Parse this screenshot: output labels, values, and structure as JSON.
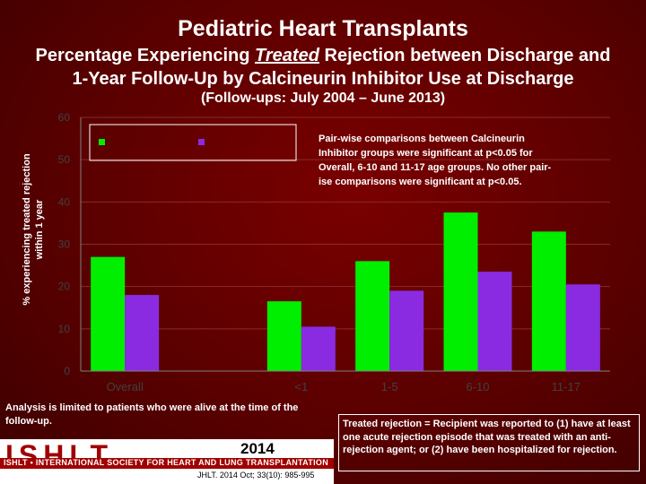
{
  "header": {
    "title": "Pediatric Heart Transplants",
    "subtitle_line1_prefix": "Percentage Experiencing",
    "subtitle_treated": "Treated",
    "subtitle_line1_suffix": "Rejection between Discharge and",
    "subtitle_line2": "1-Year Follow-Up by Calcineurin Inhibitor Use at Discharge",
    "followups": "(Follow-ups: July 2004 – June 2013)"
  },
  "colors": {
    "series1": "#00ee00",
    "series2": "#8a2be2",
    "axis_text": "#404040"
  },
  "chart_data": {
    "type": "bar",
    "title": "",
    "xlabel": "",
    "ylabel": "% experiencing treated rejection within 1 year",
    "ylim": [
      0,
      60
    ],
    "yticks": [
      0,
      10,
      20,
      30,
      40,
      50,
      60
    ],
    "categories": [
      "Overall",
      "",
      "<1",
      "1-5",
      "6-10",
      "11-17"
    ],
    "series": [
      {
        "name": "",
        "values": [
          27,
          null,
          16.5,
          26,
          37.5,
          33
        ]
      },
      {
        "name": "",
        "values": [
          18,
          null,
          10.5,
          19,
          23.5,
          20.5
        ]
      }
    ],
    "legend_position": "top-left",
    "annotation": "Pair-wise comparisons between Calcineurin Inhibitor groups were significant at p<0.05 for Overall, 6-10 and 11-17 age groups. No other pair-wise comparisons were significant at p<0.05."
  },
  "notes": {
    "analysis": "Analysis is limited to patients who were alive at the time of the follow-up.",
    "definition": "Treated rejection = Recipient was reported to (1) have at least one acute rejection episode that was treated with an anti-rejection agent; or (2) have been hospitalized for rejection."
  },
  "logo": {
    "name": "ISHLT",
    "year": "2014",
    "org": "ISHLT • INTERNATIONAL SOCIETY FOR HEART AND LUNG TRANSPLANTATION",
    "citation": "JHLT. 2014 Oct; 33(10): 985-995"
  }
}
